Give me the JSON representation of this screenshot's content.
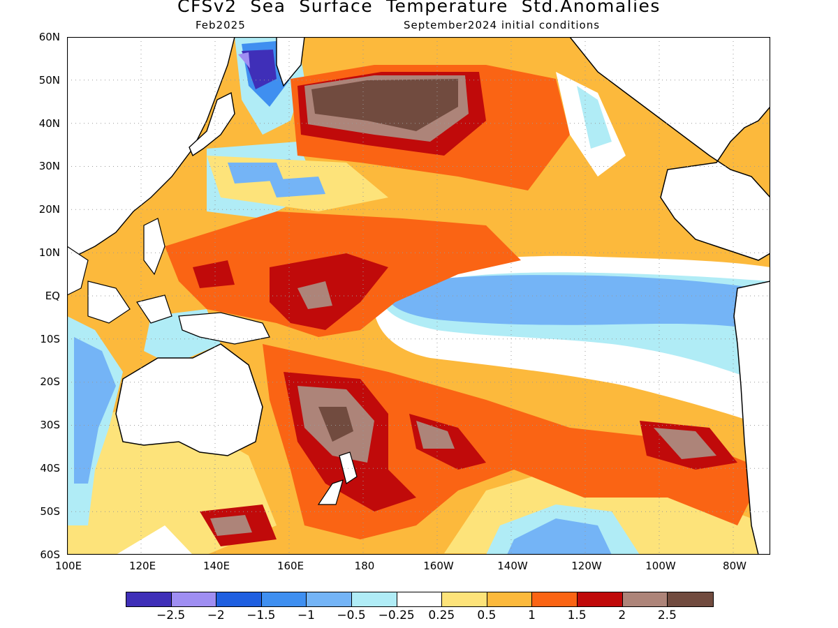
{
  "title": "CFSv2  Sea  Surface  Temperature  Std.Anomalies",
  "subtitle_left": "Feb2025",
  "subtitle_right": "September2024 initial conditions",
  "lat_labels": [
    "60N",
    "50N",
    "40N",
    "30N",
    "20N",
    "10N",
    "EQ",
    "10S",
    "20S",
    "30S",
    "40S",
    "50S",
    "60S"
  ],
  "lon_labels": [
    "100E",
    "120E",
    "140E",
    "160E",
    "180",
    "160W",
    "140W",
    "120W",
    "100W",
    "80W"
  ],
  "colorbar": {
    "colors": [
      "#3f2fb8",
      "#9f8ef2",
      "#1f5fe0",
      "#3f8ff0",
      "#74b4f6",
      "#b0ecf6",
      "#ffffff",
      "#fde37a",
      "#fcb93c",
      "#fa6414",
      "#c00a0a",
      "#ad8479",
      "#714b3f"
    ],
    "ticks": [
      "−2.5",
      "−2",
      "−1.5",
      "−1",
      "−0.5",
      "−0.25",
      "0.25",
      "0.5",
      "1",
      "1.5",
      "2",
      "2.5"
    ]
  },
  "map": {
    "lat_range": [
      -60,
      60
    ],
    "lon_range": [
      100,
      290
    ],
    "background": "#ffffff",
    "coast_color": "#000000",
    "grid": "dotted"
  }
}
